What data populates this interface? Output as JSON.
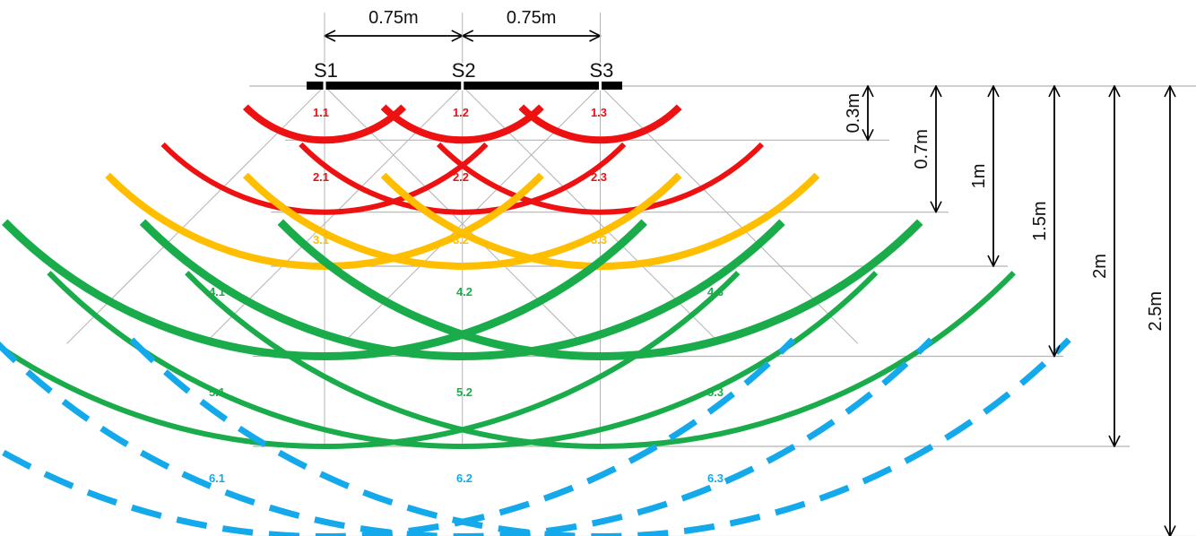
{
  "colors": {
    "red": "#ee1111",
    "yellow": "#ffbf00",
    "green": "#1aac4a",
    "blue": "#13a9ea",
    "guide": "#b4b4b4",
    "black": "#000000"
  },
  "sensors": [
    {
      "label": "S1",
      "x_m": 0.0
    },
    {
      "label": "S2",
      "x_m": 0.75
    },
    {
      "label": "S3",
      "x_m": 1.5
    }
  ],
  "spacing_labels": [
    "0.75m",
    "0.75m"
  ],
  "depth_levels": [
    {
      "label": "0.3m",
      "depth_m": 0.3
    },
    {
      "label": "0.7m",
      "depth_m": 0.7
    },
    {
      "label": "1m",
      "depth_m": 1.0
    },
    {
      "label": "1.5m",
      "depth_m": 1.5
    },
    {
      "label": "2m",
      "depth_m": 2.0
    },
    {
      "label": "2.5m",
      "depth_m": 2.5
    }
  ],
  "zone_rows": [
    {
      "labels": [
        "1.1",
        "1.2",
        "1.3"
      ],
      "color": "red",
      "style": "solid"
    },
    {
      "labels": [
        "2.1",
        "2.2",
        "2.3"
      ],
      "color": "red",
      "style": "solid"
    },
    {
      "labels": [
        "3.1",
        "3.2",
        "3.3"
      ],
      "color": "yellow",
      "style": "solid"
    },
    {
      "labels": [
        "4.1",
        "4.2",
        "4.3"
      ],
      "color": "green",
      "style": "solid"
    },
    {
      "labels": [
        "5.1",
        "5.2",
        "5.3"
      ],
      "color": "green",
      "style": "solid"
    },
    {
      "labels": [
        "6.1",
        "6.2",
        "6.3"
      ],
      "color": "blue",
      "style": "dashed"
    }
  ]
}
